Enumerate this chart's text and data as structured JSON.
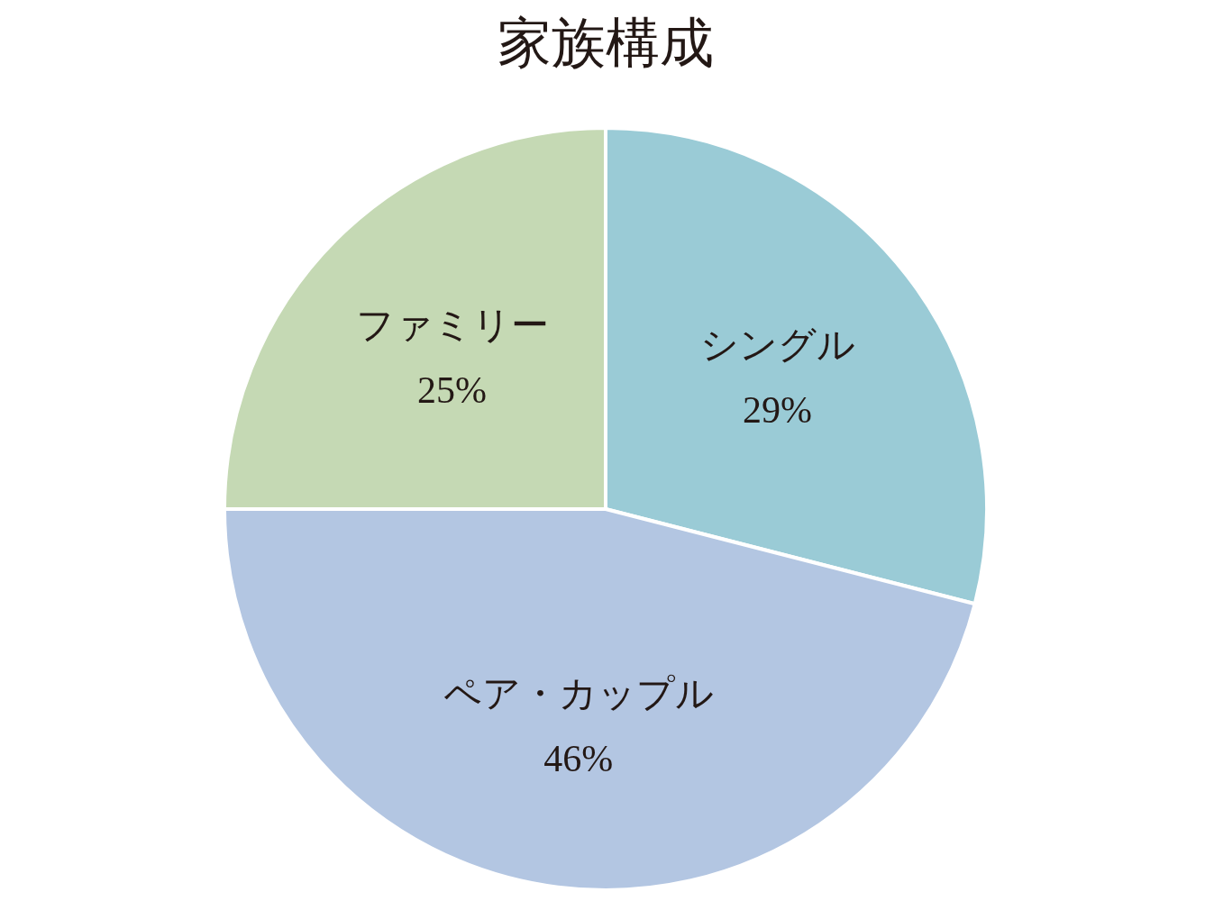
{
  "chart_data": {
    "type": "pie",
    "title": "家族構成",
    "categories": [
      "シングル",
      "ペア・カップル",
      "ファミリー"
    ],
    "values": [
      29,
      46,
      25
    ],
    "colors": [
      "#9acbd6",
      "#b3c6e2",
      "#c5d9b4"
    ],
    "value_labels": [
      "29%",
      "46%",
      "25%"
    ]
  }
}
